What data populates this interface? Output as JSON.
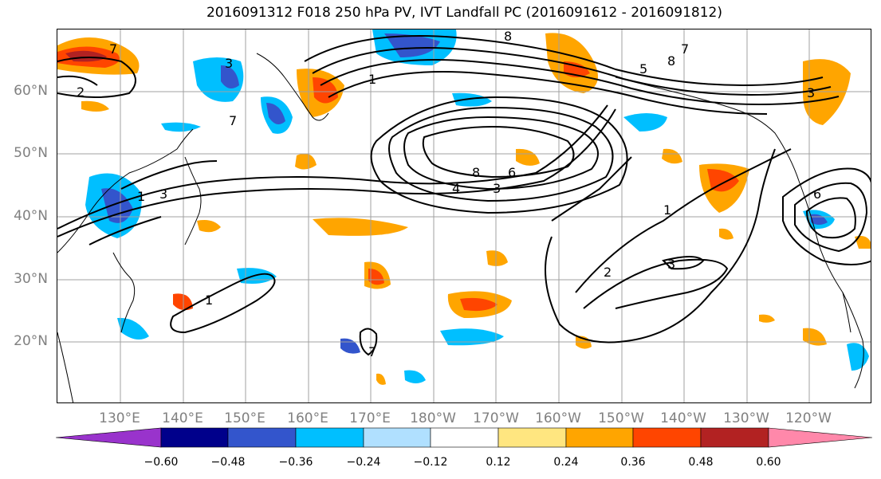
{
  "title": "2016091312 F018 250 hPa PV, IVT Landfall PC (2016091612 - 2016091812)",
  "lat_labels": [
    "60°N",
    "50°N",
    "40°N",
    "30°N",
    "20°N"
  ],
  "lon_labels": [
    "130°E",
    "140°E",
    "150°E",
    "160°E",
    "170°E",
    "180°W",
    "170°W",
    "160°W",
    "150°W",
    "140°W",
    "130°W",
    "120°W"
  ],
  "colorbar": {
    "ticks": [
      "−0.60",
      "−0.48",
      "−0.36",
      "−0.24",
      "−0.12",
      "0.12",
      "0.24",
      "0.36",
      "0.48",
      "0.60"
    ],
    "colors": [
      "#9933cc",
      "#00008b",
      "#3355cc",
      "#00bfff",
      "#b0e0ff",
      "#ffffff",
      "#ffe680",
      "#ffa500",
      "#ff4500",
      "#b22222",
      "#ff88aa"
    ]
  },
  "contour_labels": [
    "7",
    "2",
    "1",
    "3",
    "7",
    "8",
    "4",
    "6",
    "3",
    "8",
    "8",
    "7",
    "5",
    "8",
    "3",
    "1",
    "2",
    "3",
    "1",
    "7",
    "6"
  ]
}
